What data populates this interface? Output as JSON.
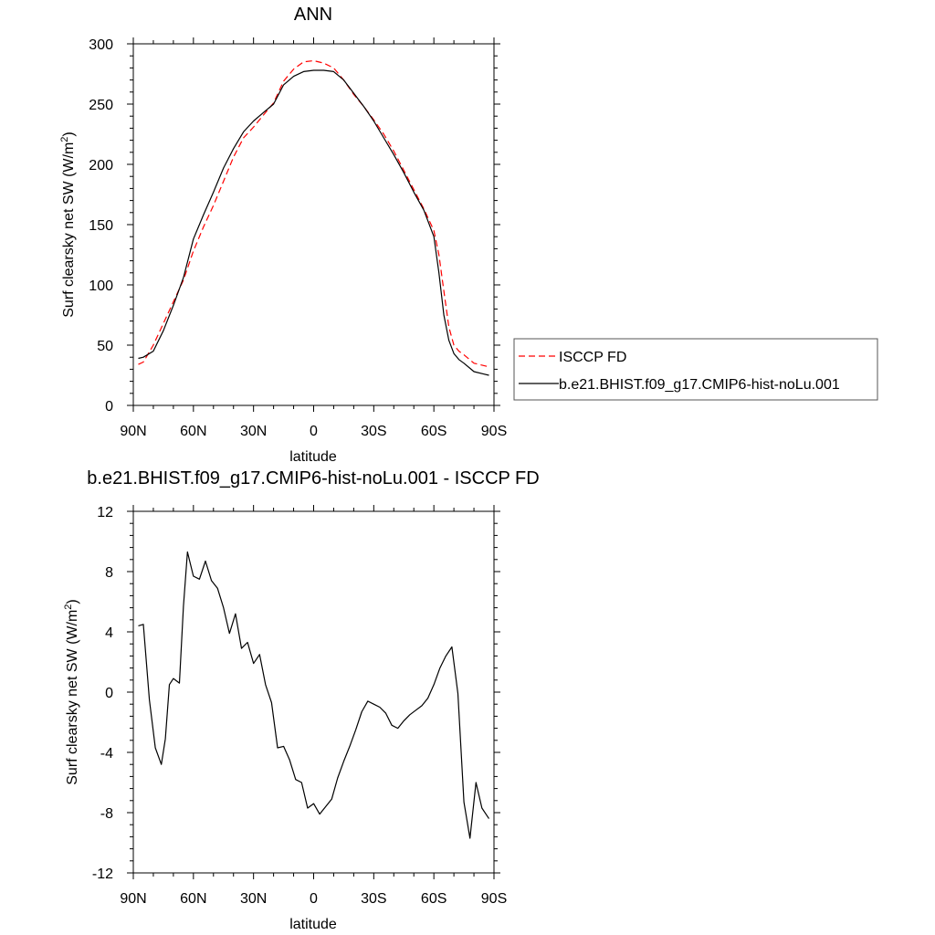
{
  "chart_data": [
    {
      "type": "line",
      "title": "ANN",
      "xlabel": "latitude",
      "ylabel": "Surf clearsky net SW (W/m",
      "ylabel_sup": "2",
      "ylabel_close": ")",
      "xlim": [
        90,
        -90
      ],
      "ylim": [
        0,
        300
      ],
      "xticks": [
        {
          "value": 90,
          "label": "90N"
        },
        {
          "value": 60,
          "label": "60N"
        },
        {
          "value": 30,
          "label": "30N"
        },
        {
          "value": 0,
          "label": "0"
        },
        {
          "value": -30,
          "label": "30S"
        },
        {
          "value": -60,
          "label": "60S"
        },
        {
          "value": -90,
          "label": "90S"
        }
      ],
      "yticks": [
        {
          "value": 0,
          "label": "0"
        },
        {
          "value": 50,
          "label": "50"
        },
        {
          "value": 100,
          "label": "100"
        },
        {
          "value": 150,
          "label": "150"
        },
        {
          "value": 200,
          "label": "200"
        },
        {
          "value": 250,
          "label": "250"
        },
        {
          "value": 300,
          "label": "300"
        }
      ],
      "legend_position": "right",
      "series": [
        {
          "name": "ISCCP FD",
          "color": "#ff0000",
          "dash": "dashed",
          "x": [
            87.5,
            85,
            80,
            75,
            70,
            65,
            60,
            55,
            50,
            45,
            40,
            35,
            30,
            25,
            20,
            15,
            10,
            5,
            0,
            -5,
            -10,
            -15,
            -20,
            -25,
            -30,
            -35,
            -40,
            -45,
            -50,
            -55,
            -60,
            -62.5,
            -65,
            -67.5,
            -70,
            -72.5,
            -75,
            -80,
            -85,
            -87.5
          ],
          "y": [
            34,
            36,
            50,
            68,
            86,
            104,
            128,
            148,
            166,
            186,
            206,
            222,
            231,
            241,
            251,
            269,
            279,
            285,
            286,
            284,
            280,
            270,
            258,
            248,
            237,
            225,
            211,
            195,
            179,
            163,
            145,
            125,
            95,
            65,
            50,
            45,
            42,
            35,
            33,
            32
          ]
        },
        {
          "name": "b.e21.BHIST.f09_g17.CMIP6-hist-noLu.001",
          "color": "#000000",
          "dash": "solid",
          "x": [
            87.5,
            85,
            80,
            75,
            70,
            65,
            60,
            55,
            50,
            45,
            40,
            35,
            30,
            25,
            20,
            15,
            10,
            5,
            0,
            -5,
            -10,
            -15,
            -20,
            -25,
            -30,
            -35,
            -40,
            -45,
            -50,
            -55,
            -60,
            -62.5,
            -65,
            -67.5,
            -70,
            -72.5,
            -75,
            -80,
            -85,
            -87.5
          ],
          "y": [
            39,
            40,
            45,
            62,
            83,
            106,
            138,
            158,
            177,
            197,
            213,
            227,
            236,
            243,
            250,
            266,
            273,
            277,
            278,
            278,
            277,
            270,
            259,
            248,
            236,
            222,
            208,
            193,
            177,
            162,
            140,
            110,
            75,
            54,
            43,
            38,
            35,
            28,
            26,
            25
          ]
        }
      ]
    },
    {
      "type": "line",
      "title": "b.e21.BHIST.f09_g17.CMIP6-hist-noLu.001 - ISCCP FD",
      "xlabel": "latitude",
      "ylabel": "Surf clearsky net SW (W/m",
      "ylabel_sup": "2",
      "ylabel_close": ")",
      "xlim": [
        90,
        -90
      ],
      "ylim": [
        -12,
        12
      ],
      "xticks": [
        {
          "value": 90,
          "label": "90N"
        },
        {
          "value": 60,
          "label": "60N"
        },
        {
          "value": 30,
          "label": "30N"
        },
        {
          "value": 0,
          "label": "0"
        },
        {
          "value": -30,
          "label": "30S"
        },
        {
          "value": -60,
          "label": "60S"
        },
        {
          "value": -90,
          "label": "90S"
        }
      ],
      "yticks": [
        {
          "value": -12,
          "label": "-12"
        },
        {
          "value": -8,
          "label": "-8"
        },
        {
          "value": -4,
          "label": "-4"
        },
        {
          "value": 0,
          "label": "0"
        },
        {
          "value": 4,
          "label": "4"
        },
        {
          "value": 8,
          "label": "8"
        },
        {
          "value": 12,
          "label": "12"
        }
      ],
      "series": [
        {
          "color": "#000000",
          "dash": "solid",
          "x": [
            87.5,
            85,
            82,
            79,
            76,
            74,
            72,
            70,
            67,
            65,
            63,
            60,
            57,
            54,
            51,
            48,
            45,
            42,
            39,
            36,
            33,
            30,
            27,
            24,
            21,
            18,
            15,
            12,
            9,
            6,
            3,
            0,
            -3,
            -6,
            -9,
            -12,
            -15,
            -18,
            -21,
            -24,
            -27,
            -30,
            -33,
            -36,
            -39,
            -42,
            -45,
            -48,
            -51,
            -54,
            -57,
            -60,
            -63,
            -66,
            -69,
            -72,
            -75,
            -78,
            -81,
            -84,
            -87.5
          ],
          "y": [
            4.4,
            4.5,
            -0.5,
            -3.7,
            -4.8,
            -3.1,
            0.5,
            0.9,
            0.6,
            5.7,
            9.3,
            7.7,
            7.5,
            8.7,
            7.4,
            6.9,
            5.6,
            3.9,
            5.2,
            2.9,
            3.3,
            1.9,
            2.5,
            0.5,
            -0.7,
            -3.7,
            -3.6,
            -4.5,
            -5.8,
            -6.0,
            -7.7,
            -7.4,
            -8.1,
            -7.6,
            -7.1,
            -5.7,
            -4.6,
            -3.6,
            -2.5,
            -1.3,
            -0.6,
            -0.8,
            -1.0,
            -1.4,
            -2.2,
            -2.4,
            -1.9,
            -1.5,
            -1.2,
            -0.9,
            -0.4,
            0.5,
            1.6,
            2.4,
            3.0,
            -0.1,
            -7.3,
            -9.7,
            -6.0,
            -7.7,
            -8.4
          ]
        }
      ]
    }
  ]
}
